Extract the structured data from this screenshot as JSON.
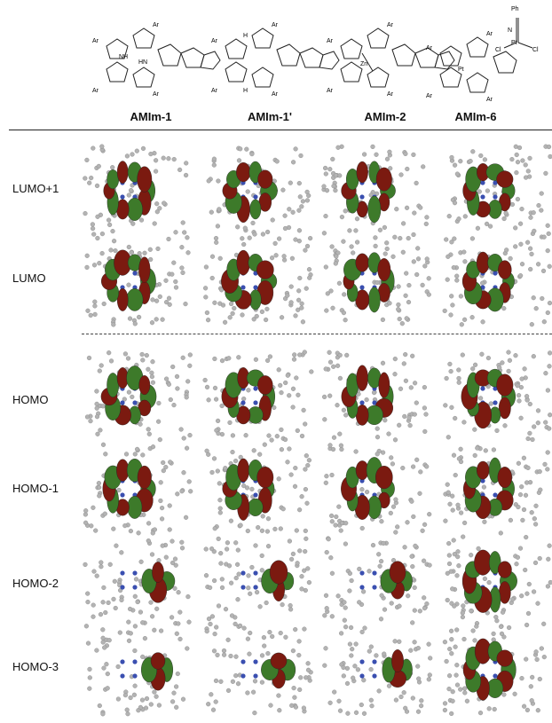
{
  "compounds": [
    "AMIm-1",
    "AMIm-1'",
    "AMIm-2",
    "AMIm-6"
  ],
  "orbitals": [
    "LUMO+1",
    "LUMO",
    "HOMO",
    "HOMO-1",
    "HOMO-2",
    "HOMO-3"
  ],
  "structure_labels": {
    "ar": "Ar",
    "nh": "NH",
    "hn": "HN",
    "n": "N",
    "h": "H",
    "zn": "Zn",
    "pt": "Pt",
    "cl": "Cl",
    "ph": "Ph"
  },
  "colors": {
    "lobe_red": "#7b1a10",
    "lobe_green": "#3d7a2a",
    "atom_gray": "#b3b3b3",
    "atom_blue": "#3a4fb0"
  }
}
